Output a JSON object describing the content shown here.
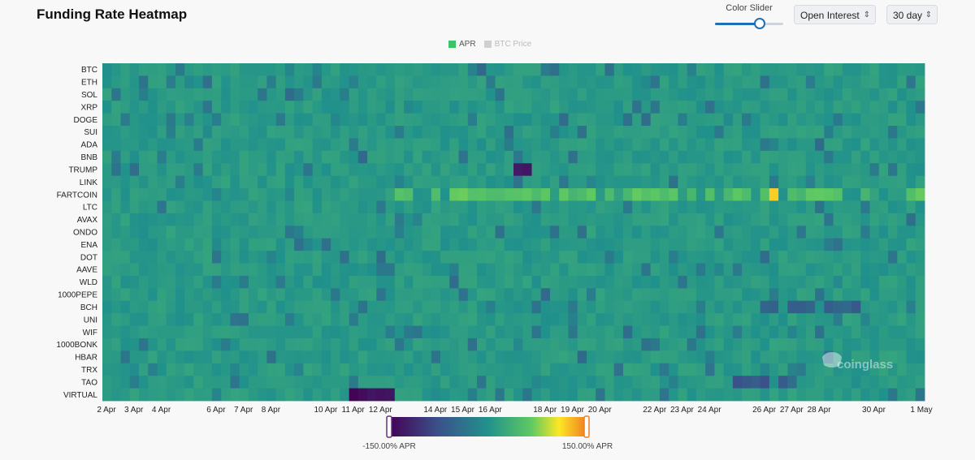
{
  "header": {
    "title": "Funding Rate Heatmap",
    "color_slider_label": "Color Slider",
    "color_slider_value": 0.66,
    "sort_select": "Open Interest",
    "range_select": "30 day"
  },
  "legend": {
    "items": [
      {
        "label": "APR",
        "color": "#3cc36a"
      },
      {
        "label": "BTC Price",
        "color": "#d0d0d0"
      }
    ]
  },
  "color_bar": {
    "min_label": "-150.00% APR",
    "max_label": "150.00% APR"
  },
  "watermark": "coinglass",
  "chart_data": {
    "type": "heatmap",
    "title": "Funding Rate Heatmap",
    "y_categories": [
      "BTC",
      "ETH",
      "SOL",
      "XRP",
      "DOGE",
      "SUI",
      "ADA",
      "BNB",
      "TRUMP",
      "LINK",
      "FARTCOIN",
      "LTC",
      "AVAX",
      "ONDO",
      "ENA",
      "DOT",
      "AAVE",
      "WLD",
      "1000PEPE",
      "BCH",
      "UNI",
      "WIF",
      "1000BONK",
      "HBAR",
      "TRX",
      "TAO",
      "VIRTUAL"
    ],
    "x_tick_labels": [
      "2 Apr",
      "3 Apr",
      "4 Apr",
      "6 Apr",
      "7 Apr",
      "8 Apr",
      "10 Apr",
      "11 Apr",
      "12 Apr",
      "14 Apr",
      "15 Apr",
      "16 Apr",
      "18 Apr",
      "19 Apr",
      "20 Apr",
      "22 Apr",
      "23 Apr",
      "24 Apr",
      "26 Apr",
      "27 Apr",
      "28 Apr",
      "30 Apr",
      "1 May"
    ],
    "x_range": [
      "2 Apr",
      "1 May"
    ],
    "columns": 90,
    "color_range": [
      -150,
      150
    ],
    "unit": "% APR",
    "baseline_apr": 10,
    "colorscale": [
      "#440154",
      "#3b528b",
      "#21918c",
      "#5ec962",
      "#fde725",
      "#f07e20"
    ],
    "highlights": [
      {
        "symbol": "FARTCOIN",
        "period": "12 Apr - 1 May",
        "apr_range": [
          40,
          70
        ]
      },
      {
        "symbol": "FARTCOIN",
        "period": "26 Apr",
        "apr_range": [
          110,
          140
        ]
      },
      {
        "symbol": "TRUMP",
        "period": "17 Apr",
        "apr_range": [
          -140,
          -120
        ]
      },
      {
        "symbol": "VIRTUAL",
        "period": "11 Apr - 12 Apr",
        "apr_range": [
          -150,
          -130
        ]
      },
      {
        "symbol": "TAO",
        "period": "25 Apr - 27 Apr",
        "apr_range": [
          -80,
          -60
        ]
      },
      {
        "symbol": "BCH",
        "period": "26 Apr - 29 Apr",
        "apr_range": [
          -70,
          -40
        ]
      }
    ]
  }
}
